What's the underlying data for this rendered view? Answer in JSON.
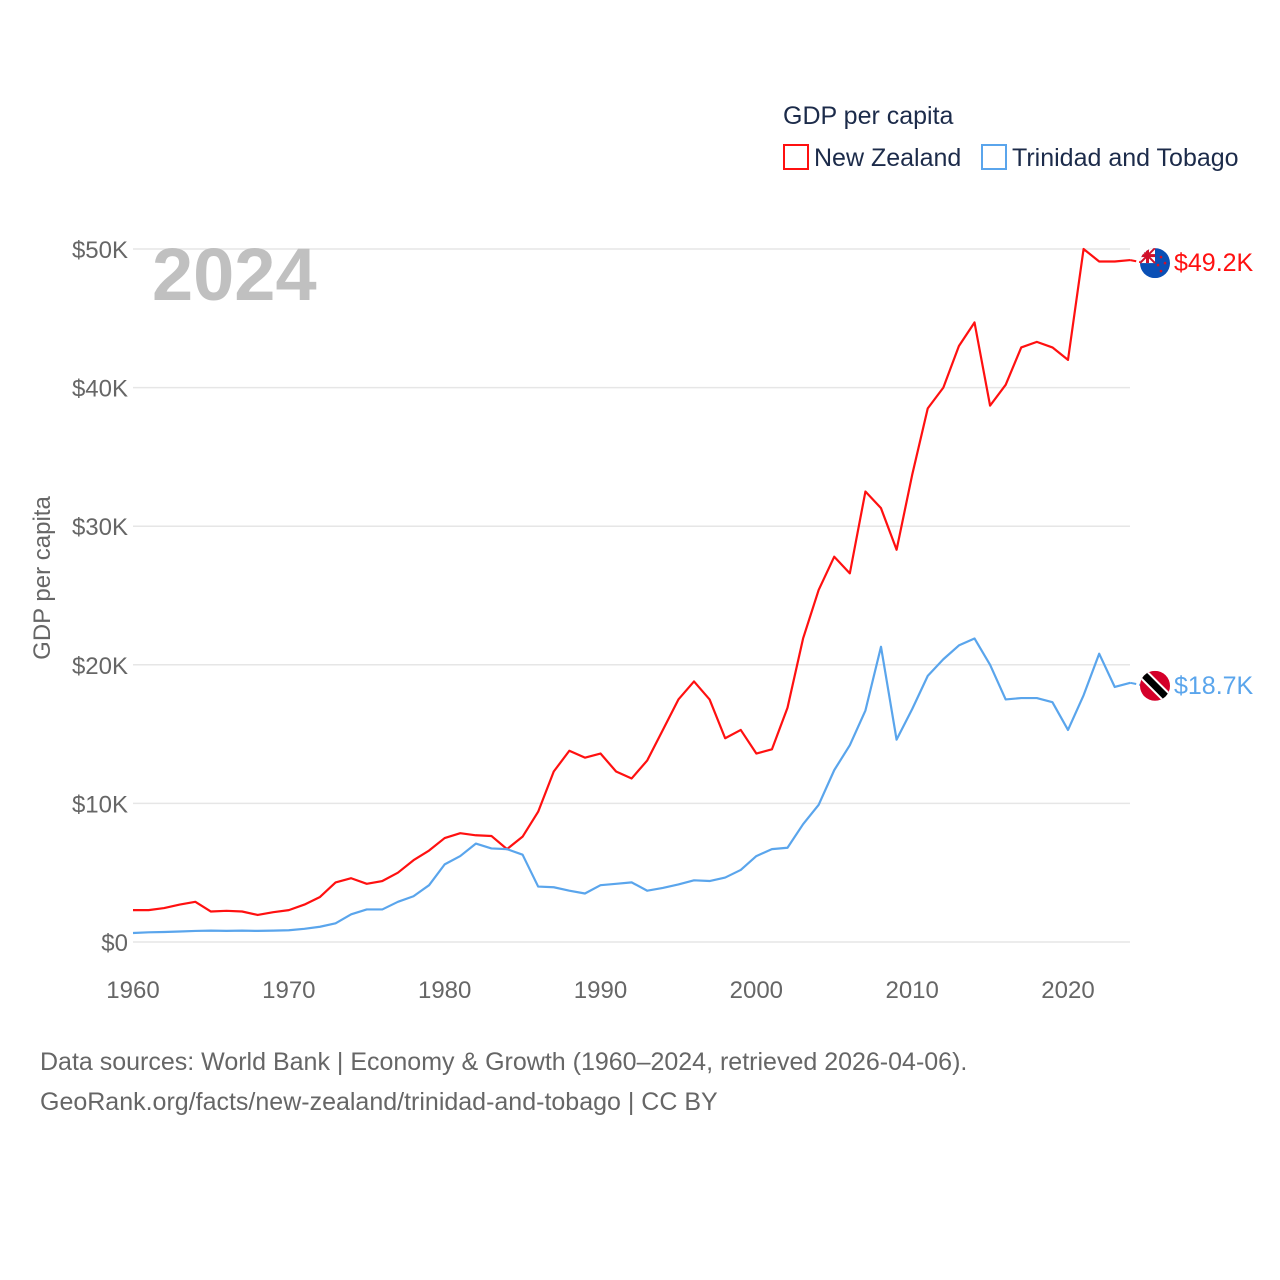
{
  "chart_data": {
    "type": "line",
    "title": "GDP per capita",
    "ylabel": "GDP per capita",
    "xlabel": "",
    "year_label": "2024",
    "xlim": [
      1960,
      2024
    ],
    "ylim": [
      0,
      50000
    ],
    "x_ticks": [
      1960,
      1970,
      1980,
      1990,
      2000,
      2010,
      2020
    ],
    "x_tick_labels": [
      "1960",
      "1970",
      "1980",
      "1990",
      "2000",
      "2010",
      "2020"
    ],
    "y_ticks": [
      0,
      10000,
      20000,
      30000,
      40000,
      50000
    ],
    "y_tick_labels": [
      "$0",
      "$10K",
      "$20K",
      "$30K",
      "$40K",
      "$50K"
    ],
    "grid": true,
    "legend_position": "top-right",
    "x": [
      1960,
      1961,
      1962,
      1963,
      1964,
      1965,
      1966,
      1967,
      1968,
      1969,
      1970,
      1971,
      1972,
      1973,
      1974,
      1975,
      1976,
      1977,
      1978,
      1979,
      1980,
      1981,
      1982,
      1983,
      1984,
      1985,
      1986,
      1987,
      1988,
      1989,
      1990,
      1991,
      1992,
      1993,
      1994,
      1995,
      1996,
      1997,
      1998,
      1999,
      2000,
      2001,
      2002,
      2003,
      2004,
      2005,
      2006,
      2007,
      2008,
      2009,
      2010,
      2011,
      2012,
      2013,
      2014,
      2015,
      2016,
      2017,
      2018,
      2019,
      2020,
      2021,
      2022,
      2023,
      2024
    ],
    "series": [
      {
        "name": "New Zealand",
        "color": "#ff1010",
        "end_label": "$49.2K",
        "flag": "new-zealand-flag",
        "values": [
          2300,
          2300,
          2450,
          2700,
          2900,
          2200,
          2250,
          2200,
          1950,
          2150,
          2300,
          2700,
          3250,
          4300,
          4600,
          4200,
          4400,
          5000,
          5900,
          6600,
          7500,
          7850,
          7700,
          7650,
          6700,
          7600,
          9400,
          12300,
          13800,
          13300,
          13600,
          12300,
          11800,
          13100,
          15300,
          17500,
          18800,
          17500,
          14700,
          15300,
          13600,
          13900,
          16900,
          21900,
          25400,
          27800,
          26600,
          32500,
          31300,
          28300,
          33700,
          38500,
          40000,
          43000,
          44700,
          38700,
          40200,
          42900,
          43300,
          42900,
          42000,
          50000,
          49100,
          49100,
          49200
        ]
      },
      {
        "name": "Trinidad and Tobago",
        "color": "#5aa5ec",
        "end_label": "$18.7K",
        "flag": "trinidad-and-tobago-flag",
        "values": [
          650,
          700,
          720,
          760,
          800,
          820,
          800,
          820,
          800,
          820,
          850,
          950,
          1100,
          1350,
          2000,
          2350,
          2350,
          2900,
          3300,
          4100,
          5600,
          6200,
          7100,
          6750,
          6700,
          6300,
          4000,
          3950,
          3700,
          3500,
          4100,
          4200,
          4300,
          3700,
          3900,
          4150,
          4450,
          4400,
          4650,
          5200,
          6200,
          6700,
          6800,
          8500,
          9900,
          12400,
          14200,
          16700,
          21300,
          14600,
          16800,
          19200,
          20400,
          21400,
          21900,
          20000,
          17500,
          17600,
          17600,
          17300,
          15300,
          17800,
          20800,
          18400,
          18700
        ]
      }
    ]
  },
  "source": {
    "line1": "Data sources: World Bank | Economy & Growth (1960–2024, retrieved 2026-04-06).",
    "line2": "GeoRank.org/facts/new-zealand/trinidad-and-tobago | CC BY"
  }
}
